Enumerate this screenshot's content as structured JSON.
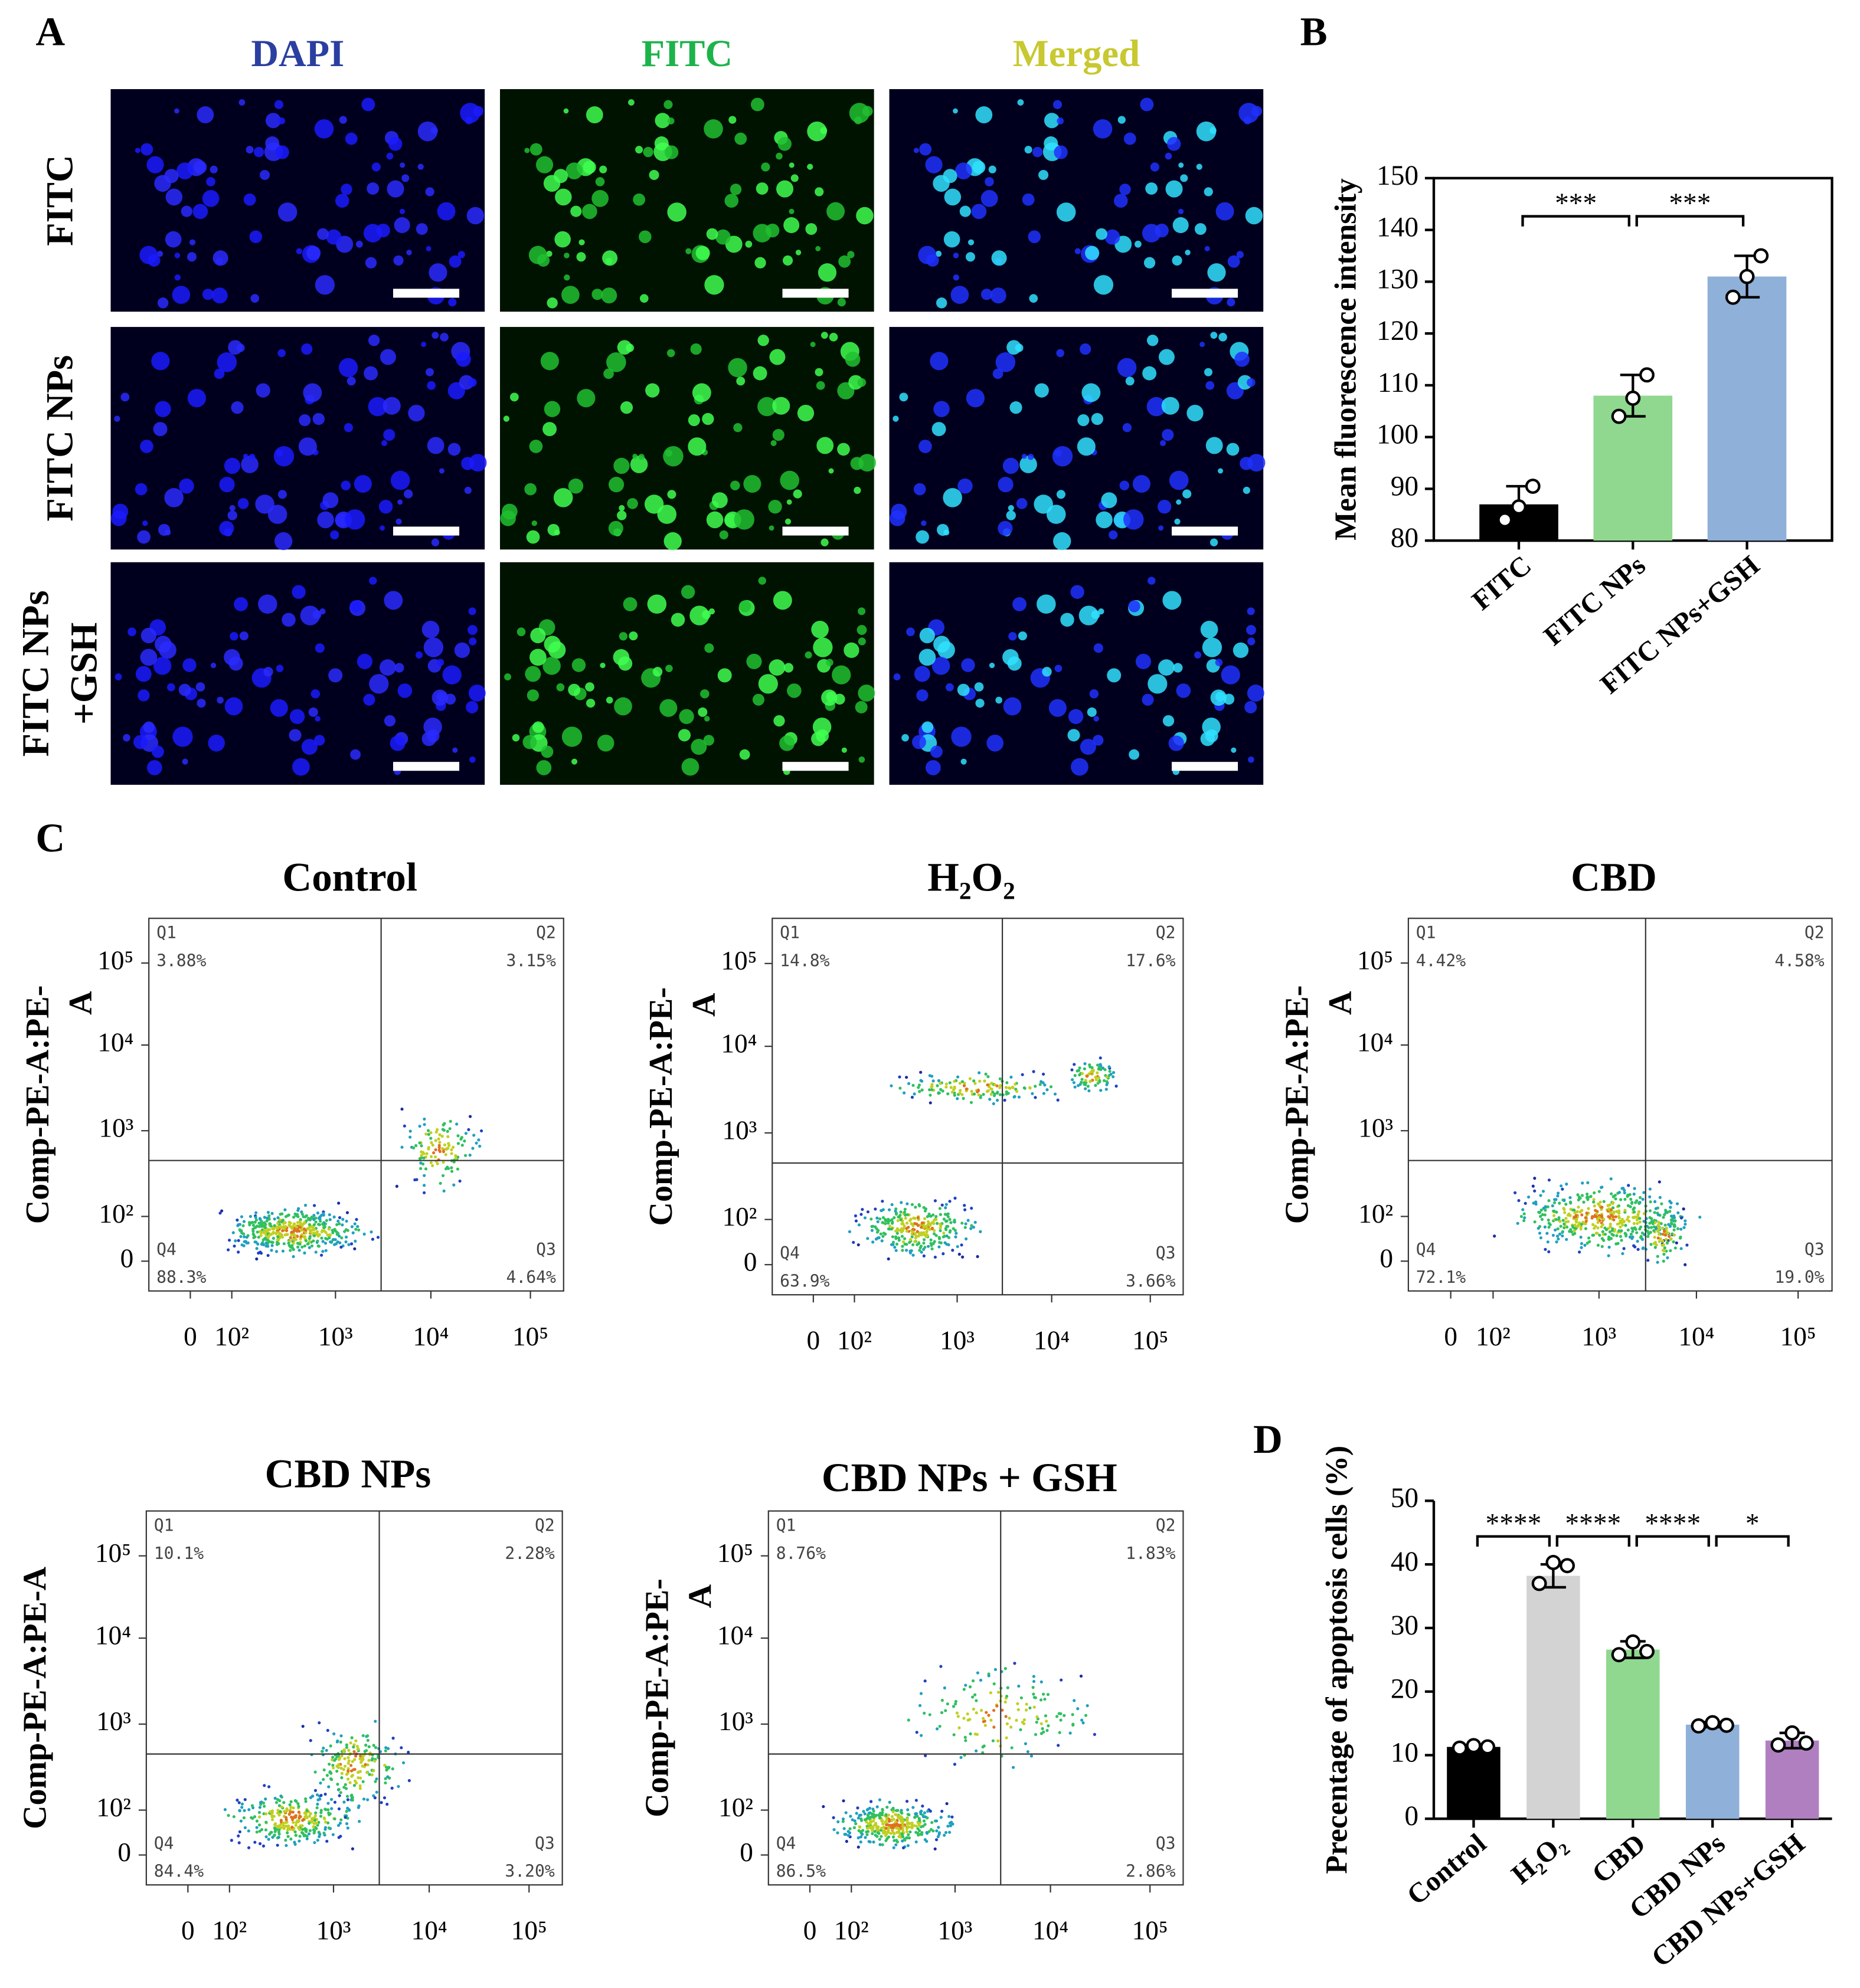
{
  "panel_labels": [
    "A",
    "B",
    "C",
    "D"
  ],
  "microscopy": {
    "columns": [
      "DAPI",
      "FITC",
      "Merged"
    ],
    "rows": [
      [
        "FITC"
      ],
      [
        "FITC NPs"
      ],
      [
        "FITC NPs",
        "+GSH"
      ]
    ]
  },
  "flow_plots": [
    {
      "title": "Control",
      "y_label": [
        "Comp-PE-A:PE-",
        "A"
      ],
      "y_tick_labels": [
        "10⁵",
        "10⁴",
        "10³",
        "10²",
        "0"
      ],
      "x_tick_labels": [
        "0",
        "10²",
        "10³",
        "10⁴",
        "10⁵"
      ],
      "quadrants": [
        {
          "name": "Q1",
          "value": "3.88%"
        },
        {
          "name": "Q2",
          "value": "3.15%"
        },
        {
          "name": "Q3",
          "value": "4.64%"
        },
        {
          "name": "Q4",
          "value": "88.3%"
        }
      ]
    },
    {
      "title": "H₂O₂",
      "y_label": [
        "Comp-PE-A:PE-",
        "A"
      ],
      "y_tick_labels": [
        "10⁵",
        "10⁴",
        "10³",
        "10²",
        "0"
      ],
      "x_tick_labels": [
        "0",
        "10²",
        "10³",
        "10⁴",
        "10⁵"
      ],
      "quadrants": [
        {
          "name": "Q1",
          "value": "14.8%"
        },
        {
          "name": "Q2",
          "value": "17.6%"
        },
        {
          "name": "Q3",
          "value": "3.66%"
        },
        {
          "name": "Q4",
          "value": "63.9%"
        }
      ]
    },
    {
      "title": "CBD",
      "y_label": [
        "Comp-PE-A:PE-",
        "A"
      ],
      "y_tick_labels": [
        "10⁵",
        "10⁴",
        "10³",
        "10²",
        "0"
      ],
      "x_tick_labels": [
        "0",
        "10²",
        "10³",
        "10⁴",
        "10⁵"
      ],
      "quadrants": [
        {
          "name": "Q1",
          "value": "4.42%"
        },
        {
          "name": "Q2",
          "value": "4.58%"
        },
        {
          "name": "Q3",
          "value": "19.0%"
        },
        {
          "name": "Q4",
          "value": "72.1%"
        }
      ]
    },
    {
      "title": "CBD NPs",
      "y_label": [
        "Comp-PE-A:PE-A"
      ],
      "y_tick_labels": [
        "10⁵",
        "10⁴",
        "10³",
        "10²",
        "0"
      ],
      "x_tick_labels": [
        "0",
        "10²",
        "10³",
        "10⁴",
        "10⁵"
      ],
      "quadrants": [
        {
          "name": "Q1",
          "value": "10.1%"
        },
        {
          "name": "Q2",
          "value": "2.28%"
        },
        {
          "name": "Q3",
          "value": "3.20%"
        },
        {
          "name": "Q4",
          "value": "84.4%"
        }
      ]
    },
    {
      "title": "CBD NPs + GSH",
      "y_label": [
        "Comp-PE-A:PE-",
        "A"
      ],
      "y_tick_labels": [
        "10⁵",
        "10⁴",
        "10³",
        "10²",
        "0"
      ],
      "x_tick_labels": [
        "0",
        "10²",
        "10³",
        "10⁴",
        "10⁵"
      ],
      "quadrants": [
        {
          "name": "Q1",
          "value": "8.76%"
        },
        {
          "name": "Q2",
          "value": "1.83%"
        },
        {
          "name": "Q3",
          "value": "2.86%"
        },
        {
          "name": "Q4",
          "value": "86.5%"
        }
      ]
    }
  ],
  "chart_data": [
    {
      "type": "bar",
      "y_label": "Mean fluorescence intensity",
      "categories": [
        "FITC",
        "FITC NPs",
        "FITC NPs+GSH"
      ],
      "values": [
        87,
        108,
        131
      ],
      "errors": [
        3.5,
        4,
        4
      ],
      "points": [
        [
          84,
          86.5,
          90.5
        ],
        [
          104,
          107.5,
          112
        ],
        [
          127,
          131,
          135
        ]
      ],
      "colors": [
        "#000000",
        "#90d890",
        "#8fb0d8"
      ],
      "ylim": [
        80,
        150
      ],
      "yticks": [
        80,
        90,
        100,
        110,
        120,
        130,
        140,
        150
      ],
      "significance": [
        {
          "from": 0,
          "to": 1,
          "label": "***"
        },
        {
          "from": 1,
          "to": 2,
          "label": "***"
        }
      ]
    },
    {
      "type": "bar",
      "y_label": "Precentage of apoptosis cells (%)",
      "categories": [
        "Control",
        "H₂O₂",
        "CBD",
        "CBD NPs",
        "CBD NPs+GSH"
      ],
      "values": [
        11.3,
        38.2,
        26.6,
        14.8,
        12.3
      ],
      "errors": [
        0.3,
        1.8,
        1.3,
        0.4,
        1.2
      ],
      "points": [
        [
          11.1,
          11.5,
          11.3
        ],
        [
          37.0,
          40.3,
          39.8
        ],
        [
          25.8,
          27.8,
          26.3
        ],
        [
          14.6,
          15.1,
          14.7
        ],
        [
          11.6,
          13.5,
          11.9
        ]
      ],
      "colors": [
        "#000000",
        "#d3d3d3",
        "#90d890",
        "#8fb0d8",
        "#b07fc0"
      ],
      "ylim": [
        0,
        50
      ],
      "yticks": [
        0,
        10,
        20,
        30,
        40,
        50
      ],
      "significance": [
        {
          "from": 0,
          "to": 1,
          "label": "****"
        },
        {
          "from": 1,
          "to": 2,
          "label": "****"
        },
        {
          "from": 2,
          "to": 3,
          "label": "****"
        },
        {
          "from": 3,
          "to": 4,
          "label": "*"
        }
      ]
    }
  ]
}
